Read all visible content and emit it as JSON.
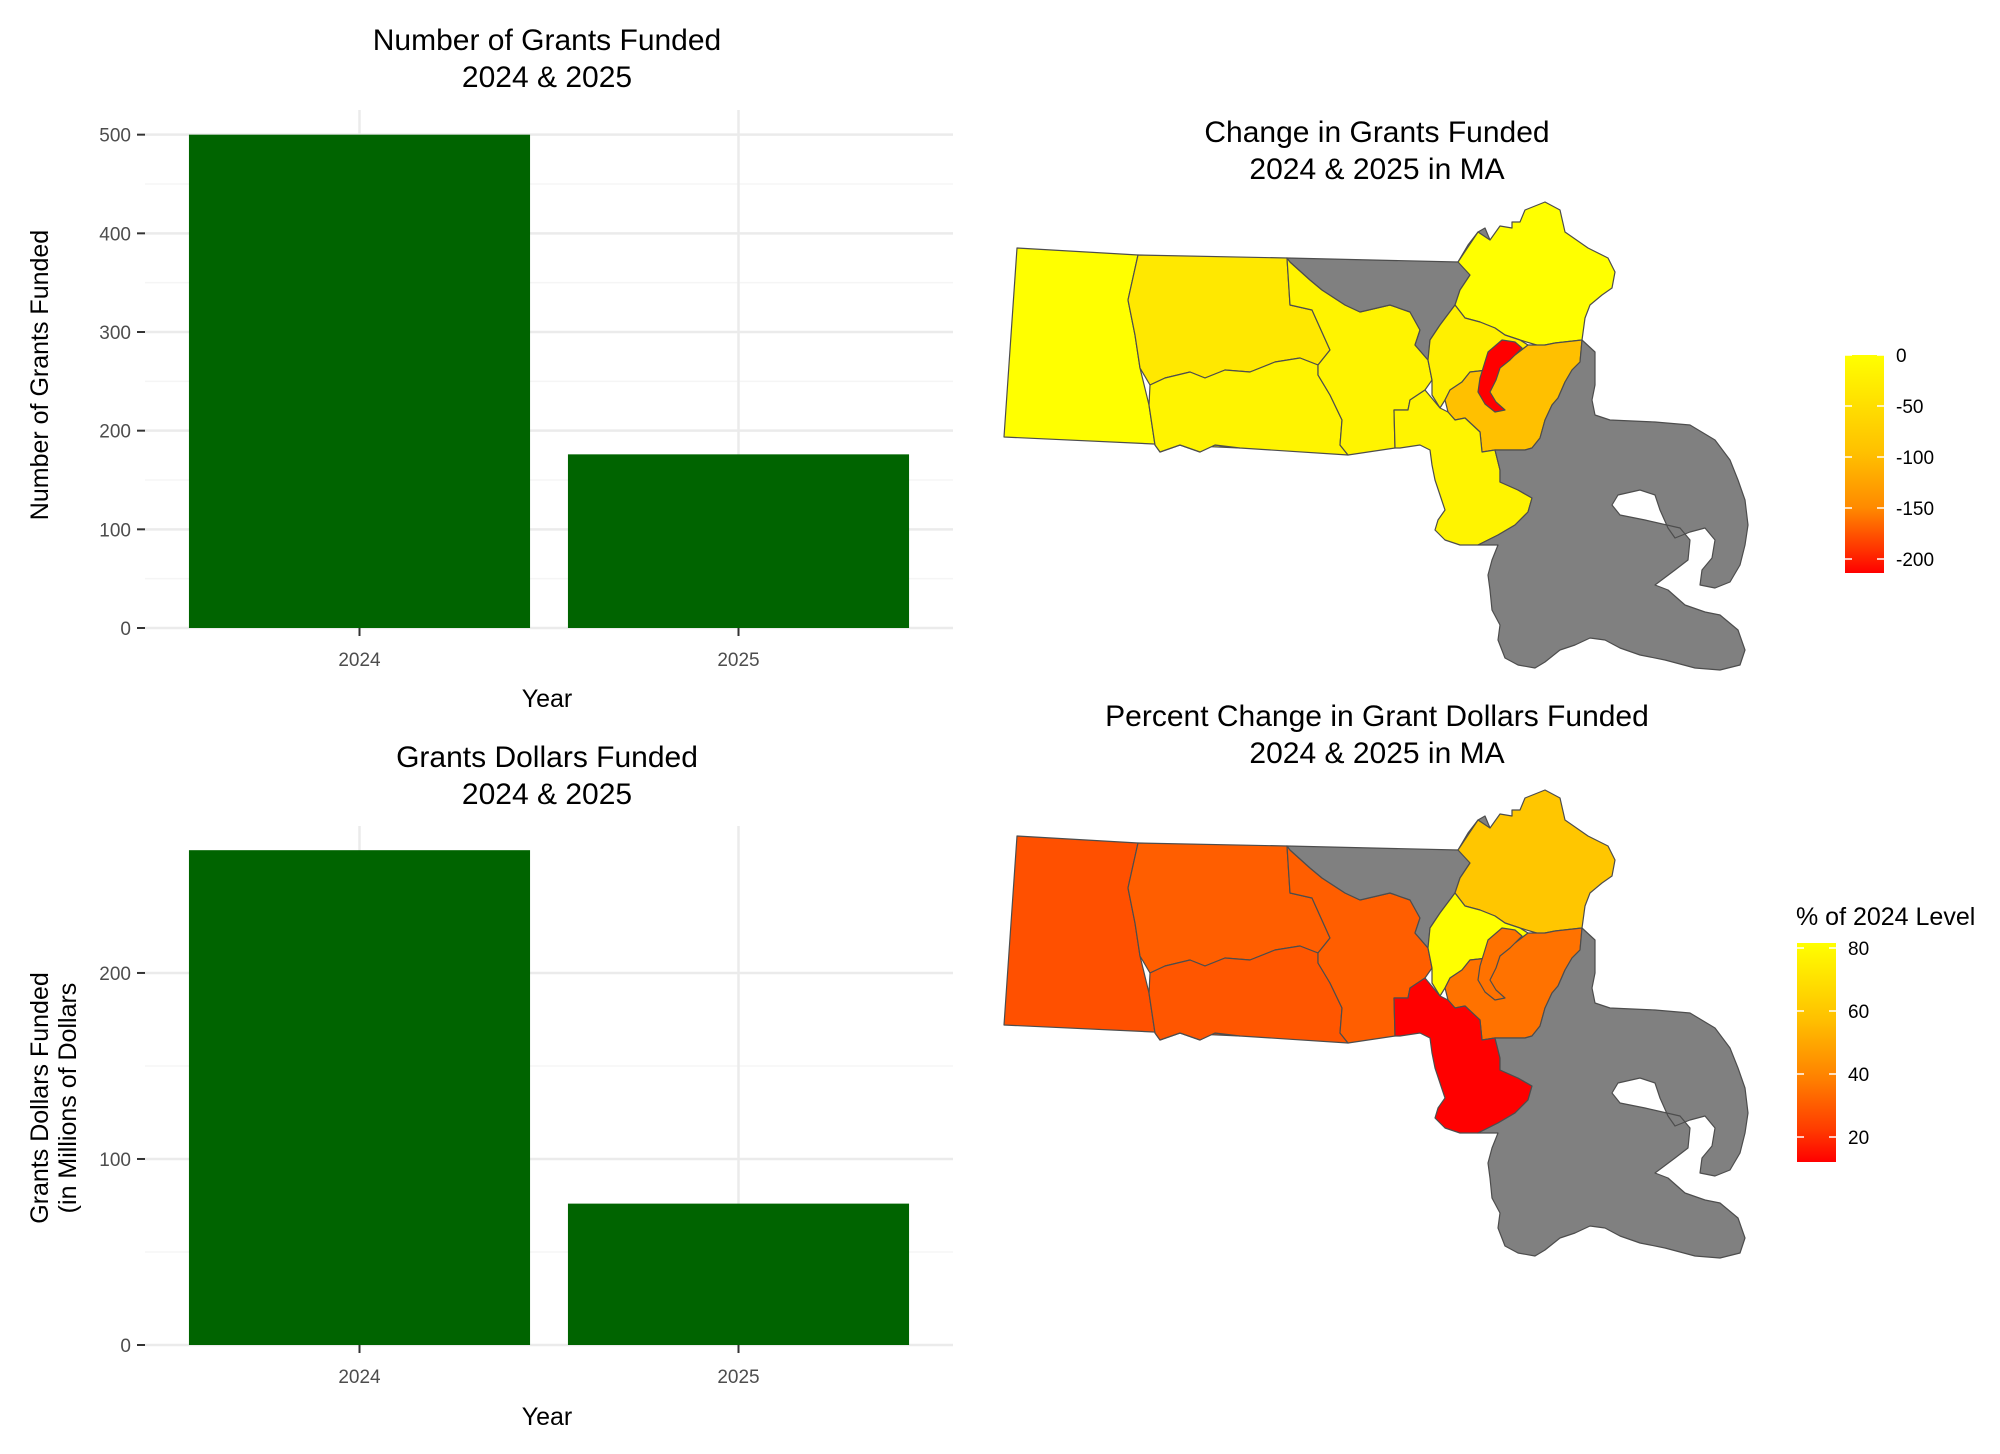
{
  "colors": {
    "bar_fill": "#006400",
    "grid": "#ebebeb",
    "axis_text": "#4d4d4d",
    "title_text": "#000000",
    "no_data": "#808080",
    "region_stroke": "#4d4d4d"
  },
  "chart_data": [
    {
      "id": "grants-count",
      "type": "bar",
      "title": [
        "Number of Grants Funded",
        "2024 & 2025"
      ],
      "xlabel": "Year",
      "ylabel": [
        "Number of Grants Funded"
      ],
      "categories": [
        "2024",
        "2025"
      ],
      "values": [
        500,
        176
      ],
      "ylim": [
        0,
        525
      ],
      "yticks": [
        0,
        100,
        200,
        300,
        400,
        500
      ],
      "grid": true
    },
    {
      "id": "grant-dollars",
      "type": "bar",
      "title": [
        "Grants Dollars Funded",
        "2024 & 2025"
      ],
      "xlabel": "Year",
      "ylabel": [
        "Grants Dollars Funded",
        "(in Millions of Dollars"
      ],
      "categories": [
        "2024",
        "2025"
      ],
      "values": [
        266,
        76
      ],
      "ylim": [
        0,
        279
      ],
      "yticks": [
        0,
        100,
        200
      ],
      "grid": true
    },
    {
      "id": "grants-change-map",
      "type": "heatmap",
      "subtype": "choropleth",
      "title": [
        "Change in Grants Funded",
        "2024 & 2025 in MA"
      ],
      "legend": {
        "title": "",
        "placement": "right",
        "ticks": [
          "0",
          "-50",
          "-100",
          "-150",
          "-200"
        ],
        "colors": [
          "#ffff00",
          "#ffc000",
          "#ff9a00",
          "#ff5a00",
          "#ff0000"
        ],
        "range": [
          -215,
          0
        ]
      },
      "regions": [
        {
          "name": "Berkshire",
          "value": -2,
          "color": "#ffff00"
        },
        {
          "name": "Franklin/Hampshire",
          "value": -13,
          "color": "#ffe800"
        },
        {
          "name": "Hampden",
          "value": -8,
          "color": "#fff400"
        },
        {
          "name": "Worcester",
          "value": -8,
          "color": "#fff400"
        },
        {
          "name": "Middlesex North",
          "value": null,
          "color": "#808080"
        },
        {
          "name": "Essex",
          "value": -4,
          "color": "#ffff00"
        },
        {
          "name": "Middlesex",
          "value": -10,
          "color": "#fff000"
        },
        {
          "name": "Norfolk",
          "value": -38,
          "color": "#ffc000"
        },
        {
          "name": "Suffolk",
          "value": -200,
          "color": "#ff0000"
        },
        {
          "name": "Bristol",
          "value": -8,
          "color": "#fff400"
        },
        {
          "name": "Plymouth/Cape",
          "value": null,
          "color": "#808080"
        }
      ]
    },
    {
      "id": "dollars-pct-map",
      "type": "heatmap",
      "subtype": "choropleth",
      "title": [
        "Percent Change in Grant Dollars Funded",
        "2024 & 2025 in MA"
      ],
      "legend": {
        "title": "% of 2024 Level",
        "placement": "right",
        "ticks": [
          "80",
          "60",
          "40",
          "20"
        ],
        "colors": [
          "#ffff00",
          "#ffc000",
          "#ff8000",
          "#ff4000",
          "#ff0000"
        ],
        "range": [
          12,
          82
        ]
      },
      "regions": [
        {
          "name": "Berkshire",
          "value": 27,
          "color": "#ff5000"
        },
        {
          "name": "Franklin/Hampshire",
          "value": 31,
          "color": "#ff5e00"
        },
        {
          "name": "Hampden",
          "value": 28,
          "color": "#ff5600"
        },
        {
          "name": "Worcester",
          "value": 31,
          "color": "#ff5e00"
        },
        {
          "name": "Middlesex North",
          "value": null,
          "color": "#808080"
        },
        {
          "name": "Essex",
          "value": 63,
          "color": "#ffc600"
        },
        {
          "name": "Middlesex",
          "value": 80,
          "color": "#ffff00"
        },
        {
          "name": "Norfolk",
          "value": 36,
          "color": "#ff7200"
        },
        {
          "name": "Suffolk",
          "value": 36,
          "color": "#ff7200"
        },
        {
          "name": "Bristol",
          "value": 12,
          "color": "#ff0000"
        },
        {
          "name": "Plymouth/Cape",
          "value": null,
          "color": "#808080"
        }
      ]
    }
  ]
}
